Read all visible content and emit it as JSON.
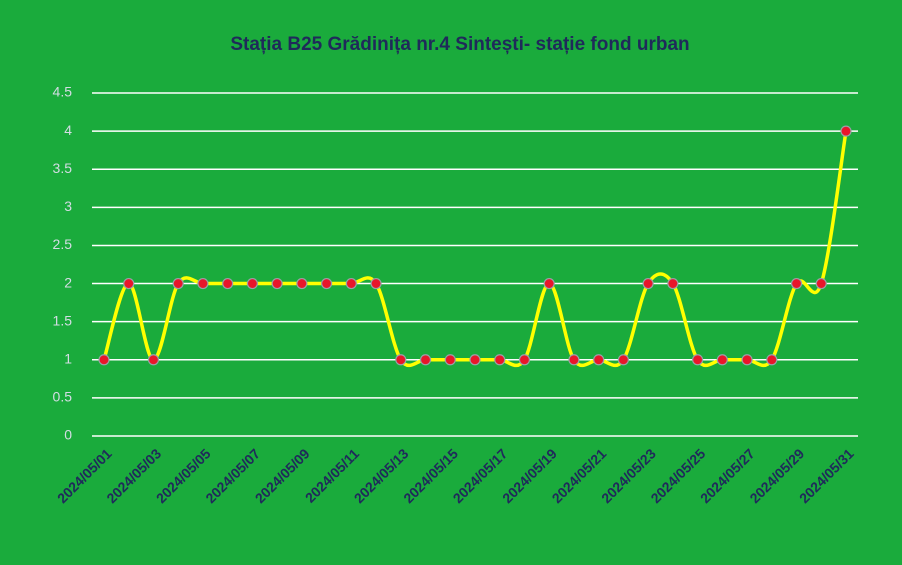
{
  "chart_data": {
    "type": "line",
    "title": "Stația B25 Grădinița nr.4  Sintești- stație fond urban",
    "categories": [
      "2024/05/01",
      null,
      "2024/05/03",
      null,
      "2024/05/05",
      null,
      "2024/05/07",
      null,
      "2024/05/09",
      null,
      "2024/05/11",
      null,
      "2024/05/13",
      null,
      "2024/05/15",
      null,
      "2024/05/17",
      null,
      "2024/05/19",
      null,
      "2024/05/21",
      null,
      "2024/05/23",
      null,
      "2024/05/25",
      null,
      "2024/05/27",
      null,
      "2024/05/29",
      null,
      "2024/05/31"
    ],
    "series": [
      {
        "color": "#ffff00",
        "marker_color": "#e8162a",
        "values": [
          1,
          2,
          1,
          2,
          2,
          2,
          2,
          2,
          2,
          2,
          2,
          2,
          1,
          1,
          1,
          1,
          1,
          1,
          2,
          1,
          1,
          1,
          2,
          2,
          1,
          1,
          1,
          1,
          2,
          2,
          4
        ]
      }
    ],
    "ylim": [
      0,
      4.5
    ],
    "yticks": [
      0,
      0.5,
      1,
      1.5,
      2,
      2.5,
      3,
      3.5,
      4,
      4.5
    ],
    "grid": true,
    "smooth": true,
    "background": "#1aab3c"
  }
}
